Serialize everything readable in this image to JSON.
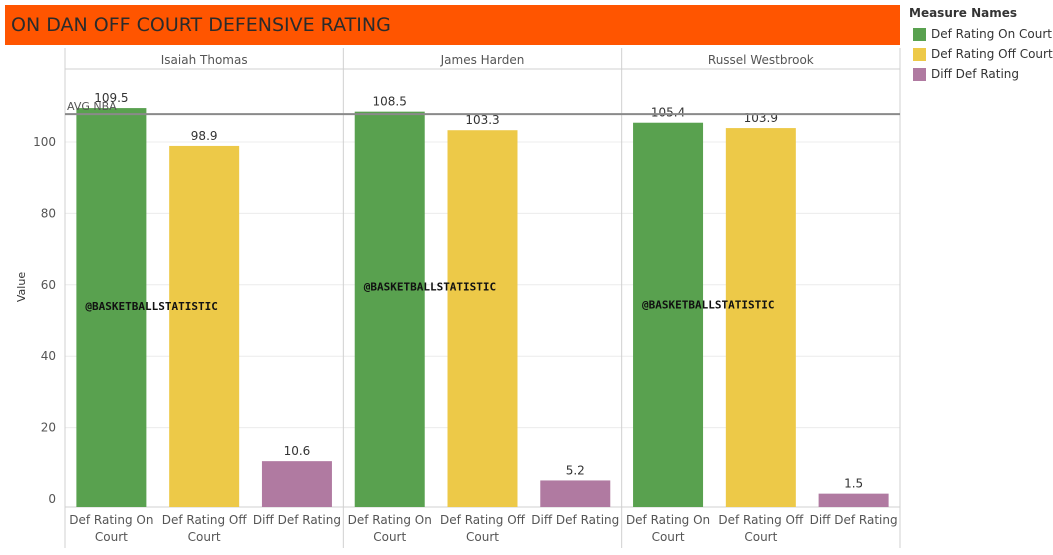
{
  "title": "ON DAN OFF COURT DEFENSIVE RATING",
  "legend": {
    "title": "Measure Names",
    "items": [
      {
        "label": "Def Rating On Court",
        "color": "#59a14f"
      },
      {
        "label": "Def Rating Off Court",
        "color": "#edc948"
      },
      {
        "label": "Diff Def Rating",
        "color": "#b07aa1"
      }
    ]
  },
  "chart_data": {
    "type": "bar",
    "ylabel": "Value",
    "ylim": [
      0,
      112
    ],
    "yticks": [
      0,
      20,
      40,
      60,
      80,
      100
    ],
    "categories": [
      "Def Rating On Court",
      "Def Rating Off Court",
      "Diff Def Rating"
    ],
    "category_labels": [
      [
        "Def Rating On",
        "Court"
      ],
      [
        "Def Rating Off",
        "Court"
      ],
      [
        "Diff Def Rating"
      ]
    ],
    "panels": [
      {
        "name": "Isaiah Thomas",
        "values": [
          109.5,
          98.9,
          10.6
        ],
        "value_labels": [
          "109.5",
          "98.9",
          "10.6"
        ],
        "watermark_value": 54
      },
      {
        "name": "James Harden",
        "values": [
          108.5,
          103.3,
          5.2
        ],
        "value_labels": [
          "108.5",
          "103.3",
          "5.2"
        ],
        "watermark_value": 59.5
      },
      {
        "name": "Russel Westbrook",
        "values": [
          105.4,
          103.9,
          1.5
        ],
        "value_labels": [
          "105.4",
          "103.9",
          "1.5"
        ],
        "watermark_value": 54.5
      }
    ],
    "reference_line": {
      "label": "AVG NBA",
      "value": 107.8
    },
    "watermark": "@BASKETBALLSTATISTIC",
    "colors": [
      "#59a14f",
      "#edc948",
      "#b07aa1"
    ],
    "grid": true,
    "legend_position": "right"
  }
}
